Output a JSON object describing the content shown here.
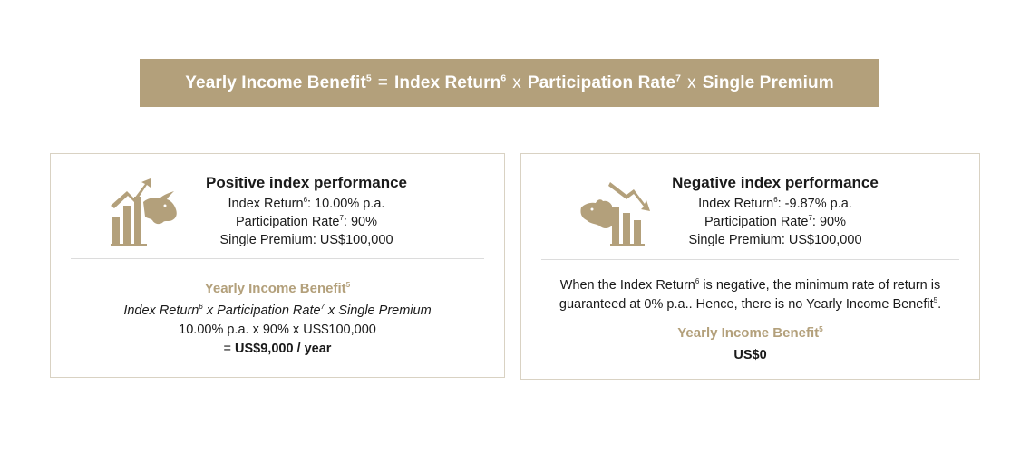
{
  "banner": {
    "yib": "Yearly Income Benefit",
    "yib_sup": "5",
    "eq": "=",
    "index_return": "Index Return",
    "index_return_sup": "6",
    "times1": "x",
    "participation_rate": "Participation Rate",
    "participation_rate_sup": "7",
    "times2": "x",
    "single_premium": "Single Premium"
  },
  "positive": {
    "icon": "bull-icon",
    "title": "Positive index performance",
    "index_return_label": "Index Return",
    "index_return_sup": "6",
    "index_return_value": ": 10.00% p.a.",
    "participation_label": "Participation Rate",
    "participation_sup": "7",
    "participation_value": ": 90%",
    "premium_line": "Single Premium: US$100,000",
    "yib_label": "Yearly Income Benefit",
    "yib_sup": "5",
    "formula_index": "Index Return",
    "formula_index_sup": "6",
    "formula_mid": " x Participation Rate",
    "formula_mid_sup": "7",
    "formula_end": " x Single Premium",
    "calc_line": "10.00% p.a. x 90% x US$100,000",
    "result_prefix": "= ",
    "result": "US$9,000 / year"
  },
  "negative": {
    "icon": "bear-icon",
    "title": "Negative index performance",
    "index_return_label": "Index Return",
    "index_return_sup": "6",
    "index_return_value": ": -9.87% p.a.",
    "participation_label": "Participation Rate",
    "participation_sup": "7",
    "participation_value": ": 90%",
    "premium_line": "Single Premium: US$100,000",
    "note_a": "When the Index Return",
    "note_a_sup": "6",
    "note_b": " is negative, the minimum rate of return is",
    "note_c": "guaranteed at 0% p.a.. Hence, there is no Yearly Income Benefit",
    "note_c_sup": "5",
    "note_d": ".",
    "yib_label": "Yearly Income Benefit",
    "yib_sup": "5",
    "result": "US$0"
  },
  "colors": {
    "accent": "#b3a07b",
    "border": "#d9d2c3",
    "text": "#1a1a1a"
  }
}
